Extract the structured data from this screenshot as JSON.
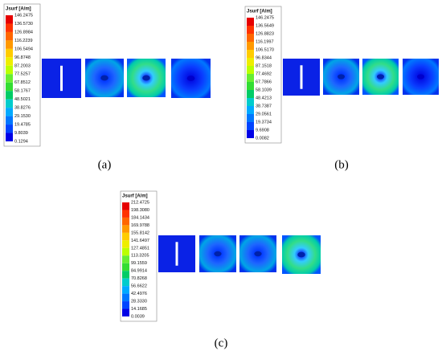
{
  "panels": [
    {
      "legend": {
        "title": "Jsurf [A/m]",
        "labels": [
          "146.2475",
          "136.5730",
          "126.8984",
          "116.2239",
          "106.5494",
          "96.8748",
          "87.2003",
          "77.5257",
          "67.8512",
          "58.1767",
          "48.5021",
          "38.8276",
          "29.1530",
          "19.4785",
          "9.8039",
          "0.1294"
        ]
      },
      "caption": "(a)"
    },
    {
      "legend": {
        "title": "Jsurf [A/m]",
        "labels": [
          "146.2475",
          "136.5649",
          "126.8823",
          "116.1997",
          "106.5170",
          "96.8344",
          "87.1518",
          "77.4692",
          "67.7866",
          "58.1039",
          "48.4213",
          "38.7387",
          "29.0561",
          "19.3734",
          "9.6908",
          "0.0082"
        ]
      },
      "caption": "(b)"
    },
    {
      "legend": {
        "title": "Jsurf [A/m]",
        "labels": [
          "212.4725",
          "198.3080",
          "184.1434",
          "169.9788",
          "155.8142",
          "141.6497",
          "127.4851",
          "113.3205",
          "99.1559",
          "84.9914",
          "70.8268",
          "56.6622",
          "42.4976",
          "28.3330",
          "14.1685",
          "0.0039"
        ]
      },
      "caption": "(c)"
    }
  ]
}
